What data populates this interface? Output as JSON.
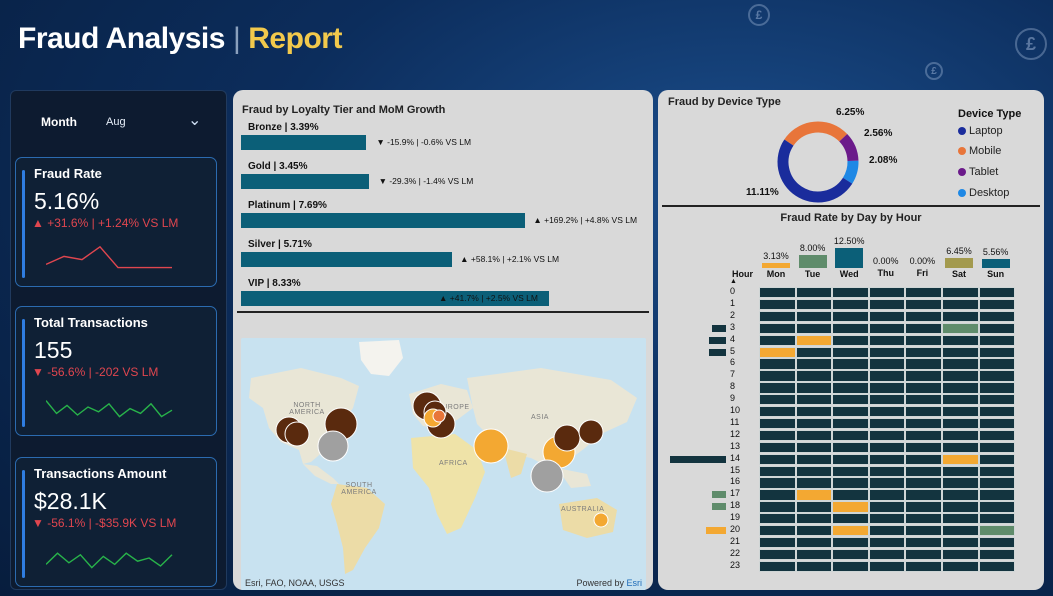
{
  "header": {
    "title_main": "Fraud Analysis",
    "title_separator": "|",
    "title_accent": "Report"
  },
  "filter": {
    "label": "Month",
    "value": "Aug"
  },
  "kpis": [
    {
      "title": "Fraud Rate",
      "value": "5.16%",
      "delta": "▲ +31.6% | +1.24% VS LM",
      "spark_color": "#e0464f",
      "spark": [
        0.3,
        0.55,
        0.45,
        0.85,
        0.2,
        0.2,
        0.2,
        0.2
      ]
    },
    {
      "title": "Total Transactions",
      "value": "155",
      "delta": "▼ -56.6% | -202 VS LM",
      "spark_color": "#28b34a",
      "spark": [
        0.7,
        0.3,
        0.55,
        0.25,
        0.5,
        0.35,
        0.6,
        0.2,
        0.45,
        0.3,
        0.6,
        0.2,
        0.4
      ]
    },
    {
      "title": "Transactions Amount",
      "value": "$28.1K",
      "delta": "▼ -56.1% | -$35.9K VS LM",
      "spark_color": "#28b34a",
      "spark": [
        0.3,
        0.65,
        0.35,
        0.6,
        0.2,
        0.55,
        0.3,
        0.65,
        0.4,
        0.5,
        0.25,
        0.6
      ]
    }
  ],
  "loyalty": {
    "title": "Fraud by Loyalty Tier and MoM Growth",
    "bar_color": "#0b5f78",
    "tiers": [
      {
        "label": "Bronze | 3.39%",
        "rate": 3.39,
        "delta": "▼ -15.9% | -0.6% VS LM"
      },
      {
        "label": "Gold | 3.45%",
        "rate": 3.45,
        "delta": "▼ -29.3% | -1.4% VS LM"
      },
      {
        "label": "Platinum | 7.69%",
        "rate": 7.69,
        "delta": "▲ +169.2% | +4.8% VS LM"
      },
      {
        "label": "Silver | 5.71%",
        "rate": 5.71,
        "delta": "▲ +58.1% | +2.1% VS LM"
      },
      {
        "label": "VIP | 8.33%",
        "rate": 8.33,
        "delta": "▲ +41.7% | +2.5% VS LM"
      }
    ]
  },
  "map": {
    "places": [
      "NORTH AMERICA",
      "EUROPE",
      "ASIA",
      "AFRICA",
      "SOUTH AMERICA",
      "AUSTRALIA"
    ],
    "attribution_left": "Esri, FAO, NOAA, USGS",
    "attribution_right_prefix": "Powered by ",
    "attribution_right_link": "Esri"
  },
  "device": {
    "title": "Fraud by Device Type",
    "legend_title": "Device Type",
    "items": [
      {
        "name": "Laptop",
        "color": "#1a2c9c",
        "value": 11.11,
        "label": "11.11%"
      },
      {
        "name": "Mobile",
        "color": "#e8753a",
        "value": 6.25,
        "label": "6.25%"
      },
      {
        "name": "Tablet",
        "color": "#6b1a8a",
        "value": 2.56,
        "label": "2.56%"
      },
      {
        "name": "Desktop",
        "color": "#1e88e5",
        "value": 2.08,
        "label": "2.08%"
      }
    ]
  },
  "heatmap": {
    "title": "Fraud Rate by Day by Hour",
    "hour_header": "Hour",
    "days": [
      {
        "name": "Mon",
        "pct": "3.13%",
        "value": 3.13,
        "color": "#f3a832"
      },
      {
        "name": "Tue",
        "pct": "8.00%",
        "value": 8.0,
        "color": "#5f8c6b"
      },
      {
        "name": "Wed",
        "pct": "12.50%",
        "value": 12.5,
        "color": "#0b5f78"
      },
      {
        "name": "Thu",
        "pct": "0.00%",
        "value": 0,
        "color": "#0b5f78"
      },
      {
        "name": "Fri",
        "pct": "0.00%",
        "value": 0,
        "color": "#0b5f78"
      },
      {
        "name": "Sat",
        "pct": "6.45%",
        "value": 6.45,
        "color": "#a39a4e"
      },
      {
        "name": "Sun",
        "pct": "5.56%",
        "value": 5.56,
        "color": "#0b5f78"
      }
    ],
    "hours": [
      "0",
      "1",
      "2",
      "3",
      "4",
      "5",
      "6",
      "7",
      "8",
      "9",
      "10",
      "11",
      "12",
      "13",
      "14",
      "15",
      "16",
      "17",
      "18",
      "19",
      "20",
      "21",
      "22",
      "23"
    ],
    "base_color": "#13343f",
    "highlights": [
      {
        "hour": 3,
        "day": 5,
        "color": "#5f8c6b"
      },
      {
        "hour": 4,
        "day": 1,
        "color": "#f3a832"
      },
      {
        "hour": 5,
        "day": 0,
        "color": "#f3a832"
      },
      {
        "hour": 14,
        "day": 5,
        "color": "#f3a832"
      },
      {
        "hour": 17,
        "day": 1,
        "color": "#f3a832"
      },
      {
        "hour": 18,
        "day": 2,
        "color": "#f3a832"
      },
      {
        "hour": 20,
        "day": 2,
        "color": "#f3a832"
      },
      {
        "hour": 20,
        "day": 6,
        "color": "#5f8c6b"
      }
    ],
    "hour_bars": [
      {
        "hour": 3,
        "value": 0.25,
        "color": "#13343f"
      },
      {
        "hour": 4,
        "value": 0.3,
        "color": "#13343f"
      },
      {
        "hour": 5,
        "value": 0.3,
        "color": "#13343f"
      },
      {
        "hour": 14,
        "value": 1.0,
        "color": "#13343f"
      },
      {
        "hour": 17,
        "value": 0.25,
        "color": "#5f8c6b"
      },
      {
        "hour": 18,
        "value": 0.25,
        "color": "#5f8c6b"
      },
      {
        "hour": 20,
        "value": 0.35,
        "color": "#f3a832"
      }
    ]
  }
}
